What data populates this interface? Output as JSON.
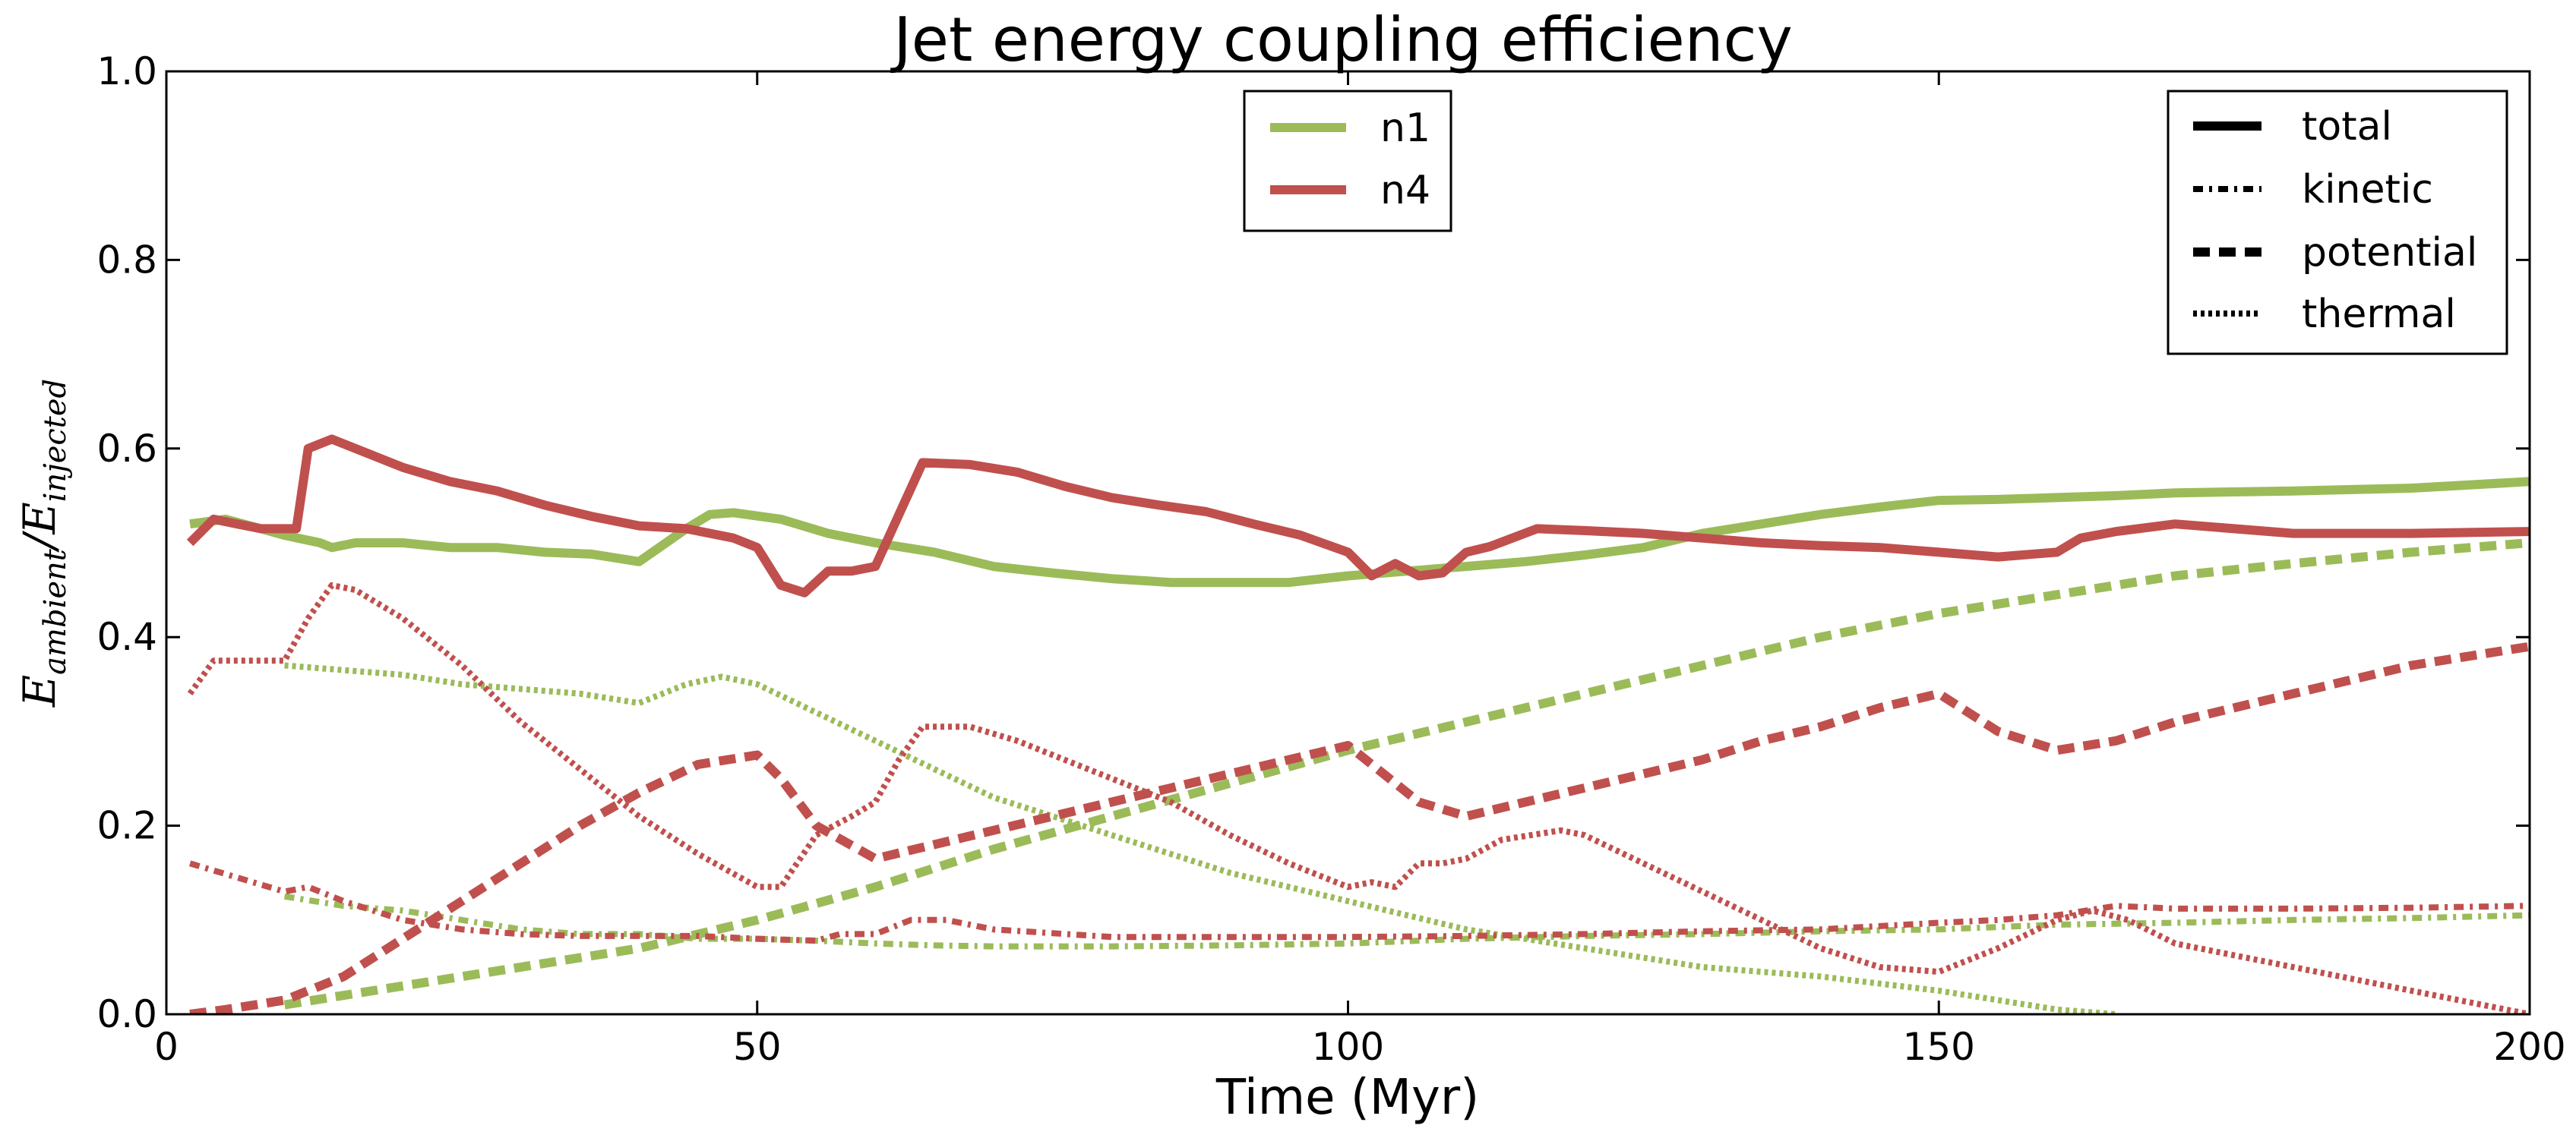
{
  "chart_data": {
    "type": "line",
    "title": "Jet energy coupling efficiency",
    "xlabel": "Time (Myr)",
    "ylabel": "E_ambient / E_injected",
    "ylabel_main": "E",
    "ylabel_sub1": "ambient",
    "ylabel_sub2": "injected",
    "xlim": [
      0,
      200
    ],
    "ylim": [
      0,
      1.0
    ],
    "xticks": [
      "0",
      "50",
      "100",
      "150",
      "200"
    ],
    "yticks": [
      "0.0",
      "0.2",
      "0.4",
      "0.6",
      "0.8",
      "1.0"
    ],
    "xtick_values": [
      0,
      50,
      100,
      150,
      200
    ],
    "ytick_values": [
      0,
      0.2,
      0.4,
      0.6,
      0.8,
      1.0
    ],
    "grid": false,
    "colors": {
      "n1": "#9bbb59",
      "n4": "#c0504d"
    },
    "legend_runs": {
      "placement": "top-center",
      "entries": [
        {
          "label": "n1",
          "color": "#9bbb59"
        },
        {
          "label": "n4",
          "color": "#c0504d"
        }
      ]
    },
    "legend_components": {
      "placement": "top-right",
      "entries": [
        {
          "label": "total",
          "style": "solid"
        },
        {
          "label": "kinetic",
          "style": "dashdot"
        },
        {
          "label": "potential",
          "style": "dashed"
        },
        {
          "label": "thermal",
          "style": "dotted"
        }
      ]
    },
    "series": [
      {
        "run": "n1",
        "component": "total",
        "style": "solid",
        "x": [
          2,
          5,
          8,
          10,
          13,
          14,
          16,
          20,
          24,
          28,
          32,
          36,
          40,
          44,
          46,
          48,
          52,
          56,
          60,
          65,
          70,
          75,
          80,
          85,
          90,
          95,
          100,
          105,
          110,
          115,
          120,
          125,
          130,
          135,
          140,
          145,
          150,
          155,
          160,
          165,
          170,
          180,
          190,
          200
        ],
        "y": [
          0.52,
          0.525,
          0.515,
          0.508,
          0.5,
          0.495,
          0.5,
          0.5,
          0.495,
          0.495,
          0.49,
          0.488,
          0.48,
          0.515,
          0.53,
          0.532,
          0.525,
          0.51,
          0.5,
          0.49,
          0.475,
          0.468,
          0.462,
          0.458,
          0.458,
          0.458,
          0.465,
          0.47,
          0.475,
          0.48,
          0.487,
          0.495,
          0.51,
          0.52,
          0.53,
          0.538,
          0.545,
          0.546,
          0.548,
          0.55,
          0.553,
          0.555,
          0.558,
          0.565
        ]
      },
      {
        "run": "n1",
        "component": "kinetic",
        "style": "dashdot",
        "x": [
          10,
          15,
          20,
          25,
          30,
          35,
          40,
          45,
          50,
          55,
          60,
          65,
          70,
          80,
          90,
          100,
          110,
          120,
          130,
          140,
          150,
          160,
          170,
          180,
          190,
          200
        ],
        "y": [
          0.125,
          0.115,
          0.11,
          0.1,
          0.09,
          0.085,
          0.085,
          0.08,
          0.08,
          0.078,
          0.075,
          0.073,
          0.072,
          0.072,
          0.073,
          0.075,
          0.08,
          0.083,
          0.085,
          0.088,
          0.09,
          0.095,
          0.097,
          0.1,
          0.102,
          0.105
        ]
      },
      {
        "run": "n1",
        "component": "potential",
        "style": "dashed",
        "x": [
          10,
          20,
          30,
          40,
          50,
          60,
          70,
          80,
          90,
          100,
          110,
          120,
          130,
          140,
          150,
          160,
          170,
          180,
          190,
          200
        ],
        "y": [
          0.01,
          0.03,
          0.05,
          0.07,
          0.1,
          0.135,
          0.175,
          0.21,
          0.245,
          0.28,
          0.31,
          0.34,
          0.37,
          0.4,
          0.425,
          0.445,
          0.465,
          0.478,
          0.49,
          0.5
        ]
      },
      {
        "run": "n1",
        "component": "thermal",
        "style": "dotted",
        "x": [
          10,
          15,
          20,
          25,
          30,
          35,
          40,
          44,
          47,
          50,
          55,
          60,
          65,
          70,
          80,
          90,
          100,
          110,
          120,
          130,
          140,
          150,
          155,
          160,
          165
        ],
        "y": [
          0.37,
          0.365,
          0.36,
          0.35,
          0.345,
          0.34,
          0.33,
          0.35,
          0.358,
          0.35,
          0.32,
          0.29,
          0.26,
          0.23,
          0.19,
          0.15,
          0.12,
          0.09,
          0.07,
          0.05,
          0.04,
          0.025,
          0.015,
          0.005,
          0.0
        ]
      },
      {
        "run": "n4",
        "component": "total",
        "style": "solid",
        "x": [
          2,
          4,
          6,
          8,
          11,
          12,
          14,
          16,
          20,
          24,
          28,
          32,
          36,
          40,
          44,
          48,
          50,
          52,
          54,
          56,
          58,
          60,
          62,
          64,
          68,
          72,
          76,
          80,
          84,
          88,
          92,
          96,
          100,
          102,
          104,
          106,
          108,
          110,
          112,
          116,
          120,
          125,
          130,
          135,
          140,
          145,
          150,
          155,
          160,
          162,
          165,
          170,
          180,
          190,
          200
        ],
        "y": [
          0.5,
          0.525,
          0.52,
          0.515,
          0.515,
          0.6,
          0.61,
          0.6,
          0.58,
          0.565,
          0.555,
          0.54,
          0.528,
          0.518,
          0.515,
          0.505,
          0.495,
          0.455,
          0.447,
          0.47,
          0.47,
          0.475,
          0.53,
          0.585,
          0.583,
          0.575,
          0.56,
          0.548,
          0.54,
          0.533,
          0.52,
          0.508,
          0.49,
          0.465,
          0.478,
          0.465,
          0.468,
          0.49,
          0.496,
          0.515,
          0.513,
          0.51,
          0.505,
          0.5,
          0.497,
          0.495,
          0.49,
          0.485,
          0.49,
          0.505,
          0.512,
          0.52,
          0.51,
          0.51,
          0.512
        ]
      },
      {
        "run": "n4",
        "component": "kinetic",
        "style": "dashdot",
        "x": [
          2,
          6,
          10,
          12,
          15,
          20,
          25,
          30,
          35,
          40,
          45,
          50,
          55,
          57,
          60,
          63,
          66,
          70,
          80,
          90,
          100,
          110,
          120,
          130,
          140,
          150,
          155,
          160,
          165,
          170,
          180,
          190,
          200
        ],
        "y": [
          0.16,
          0.145,
          0.13,
          0.135,
          0.12,
          0.1,
          0.09,
          0.085,
          0.083,
          0.083,
          0.083,
          0.08,
          0.078,
          0.085,
          0.085,
          0.1,
          0.1,
          0.09,
          0.082,
          0.082,
          0.082,
          0.083,
          0.085,
          0.088,
          0.09,
          0.097,
          0.1,
          0.105,
          0.115,
          0.112,
          0.112,
          0.113,
          0.115
        ]
      },
      {
        "run": "n4",
        "component": "potential",
        "style": "dashed",
        "x": [
          2,
          5,
          10,
          15,
          20,
          25,
          30,
          35,
          40,
          45,
          50,
          52,
          55,
          60,
          65,
          70,
          75,
          80,
          85,
          90,
          95,
          100,
          103,
          106,
          110,
          115,
          120,
          125,
          130,
          135,
          140,
          145,
          150,
          155,
          160,
          165,
          170,
          175,
          180,
          185,
          190,
          195,
          200
        ],
        "y": [
          0.0,
          0.005,
          0.015,
          0.04,
          0.08,
          0.12,
          0.16,
          0.2,
          0.235,
          0.265,
          0.275,
          0.25,
          0.2,
          0.165,
          0.18,
          0.195,
          0.21,
          0.225,
          0.24,
          0.255,
          0.27,
          0.285,
          0.255,
          0.225,
          0.21,
          0.225,
          0.24,
          0.255,
          0.27,
          0.29,
          0.305,
          0.325,
          0.34,
          0.3,
          0.28,
          0.29,
          0.31,
          0.325,
          0.34,
          0.355,
          0.37,
          0.38,
          0.39
        ]
      },
      {
        "run": "n4",
        "component": "thermal",
        "style": "dotted",
        "x": [
          2,
          4,
          8,
          10,
          12,
          14,
          16,
          20,
          25,
          30,
          35,
          40,
          45,
          50,
          52,
          55,
          58,
          60,
          62,
          64,
          68,
          72,
          76,
          80,
          85,
          90,
          95,
          100,
          102,
          104,
          106,
          108,
          110,
          113,
          118,
          120,
          125,
          130,
          135,
          140,
          145,
          150,
          155,
          160,
          163,
          166,
          170,
          180,
          190,
          200
        ],
        "y": [
          0.34,
          0.375,
          0.375,
          0.375,
          0.42,
          0.455,
          0.45,
          0.42,
          0.37,
          0.31,
          0.26,
          0.21,
          0.17,
          0.135,
          0.135,
          0.19,
          0.21,
          0.225,
          0.27,
          0.305,
          0.305,
          0.29,
          0.27,
          0.25,
          0.225,
          0.19,
          0.16,
          0.135,
          0.14,
          0.135,
          0.16,
          0.16,
          0.165,
          0.185,
          0.195,
          0.19,
          0.16,
          0.13,
          0.1,
          0.07,
          0.05,
          0.045,
          0.07,
          0.1,
          0.11,
          0.1,
          0.075,
          0.05,
          0.025,
          0.0
        ]
      }
    ]
  }
}
